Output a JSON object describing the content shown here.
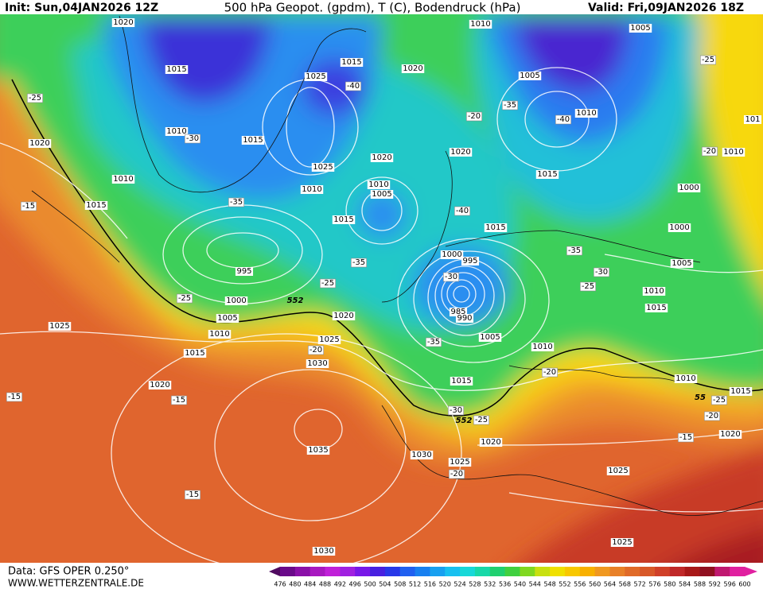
{
  "header": {
    "init": "Init: Sun,04JAN2026 12Z",
    "title": "500 hPa Geopot. (gpdm), T (C), Bodendruck (hPa)",
    "valid": "Valid: Fri,09JAN2026 18Z"
  },
  "footer": {
    "data": "Data: GFS OPER 0.250°",
    "site": "WWW.WETTERZENTRALE.DE"
  },
  "colorbar": {
    "labels": [
      476,
      480,
      484,
      488,
      492,
      496,
      500,
      504,
      508,
      512,
      516,
      520,
      524,
      528,
      532,
      536,
      540,
      544,
      548,
      552,
      556,
      560,
      564,
      568,
      572,
      576,
      580,
      584,
      588,
      592,
      596,
      600
    ]
  },
  "map": {
    "pressure_labels": [
      "1020",
      "1010",
      "1005",
      "1015",
      "1015",
      "1020",
      "1025",
      "1005",
      "1010",
      "1010",
      "1015",
      "1020",
      "1020",
      "1020",
      "1025",
      "1015",
      "1010",
      "1010",
      "1010",
      "1005",
      "1000",
      "1015",
      "1015",
      "1015",
      "1000",
      "995",
      "1000",
      "995",
      "1005",
      "1000",
      "1010",
      "1015",
      "1020",
      "1005",
      "985",
      "990",
      "1025",
      "1010",
      "1025",
      "1005",
      "1010",
      "1015",
      "1030",
      "1010",
      "1015",
      "1020",
      "1015",
      "1020",
      "1020",
      "1035",
      "1030",
      "1025",
      "1025",
      "1030",
      "1025",
      "1010",
      "101"
    ],
    "temperature_labels": [
      "-25",
      "-30",
      "-35",
      "-15",
      "-35",
      "-25",
      "-25",
      "-20",
      "-40",
      "-35",
      "-20",
      "-40",
      "-25",
      "-20",
      "-40",
      "-35",
      "-30",
      "-25",
      "-30",
      "-35",
      "-20",
      "-15",
      "-15",
      "-30",
      "-25",
      "-25",
      "-20",
      "-15",
      "-20",
      "-15"
    ],
    "geopotential_labels": [
      "552",
      "552",
      "55"
    ]
  }
}
